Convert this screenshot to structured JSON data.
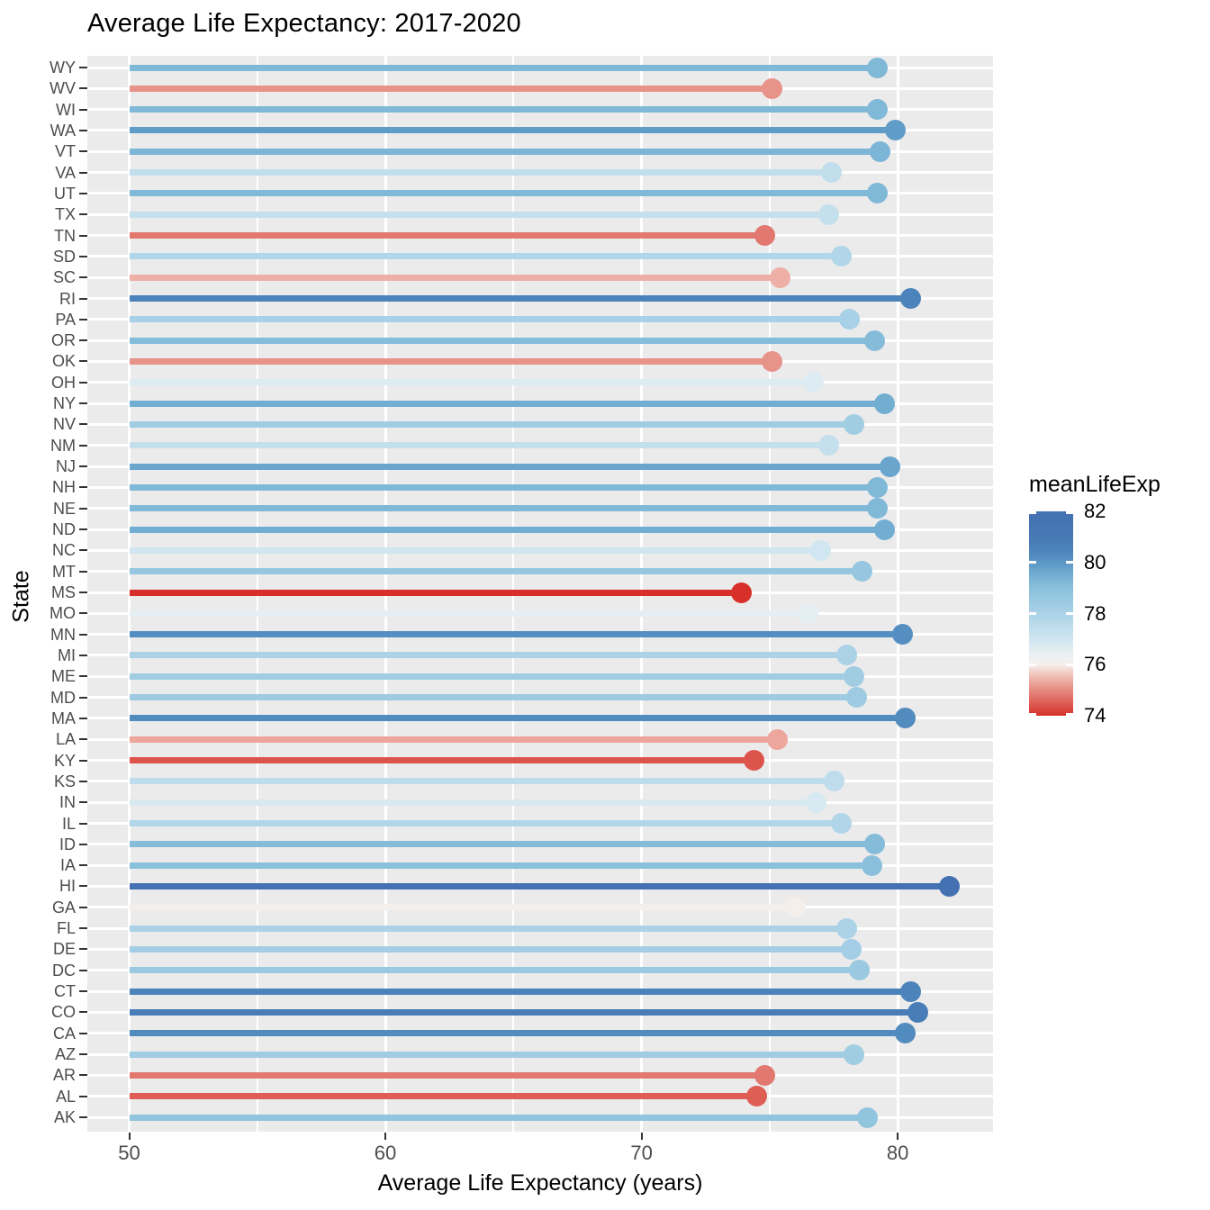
{
  "title": "Average Life Expectancy: 2017-2020",
  "x_axis": {
    "label": "Average Life Expectancy (years)",
    "ticks": [
      50,
      60,
      70,
      80
    ],
    "minor_ticks": [
      55,
      65,
      75
    ]
  },
  "y_axis": {
    "label": "State"
  },
  "legend": {
    "title": "meanLifeExp",
    "ticks": [
      82,
      80,
      78,
      76,
      74
    ],
    "min": 74,
    "max": 82,
    "position": "right"
  },
  "colors": {
    "panel_bg": "#ebebeb",
    "grid": "#ffffff",
    "axis_text": "#4d4d4d",
    "tick_mark": "#333333",
    "title_text": "#000000",
    "gradient_stops": [
      {
        "v": 74.0,
        "c": "#d7302a"
      },
      {
        "v": 74.5,
        "c": "#de5d55"
      },
      {
        "v": 75.0,
        "c": "#e58a80"
      },
      {
        "v": 75.5,
        "c": "#f0b9af"
      },
      {
        "v": 76.0,
        "c": "#f5efec"
      },
      {
        "v": 76.4,
        "c": "#e9f1f4"
      },
      {
        "v": 77.0,
        "c": "#d0e6f0"
      },
      {
        "v": 78.0,
        "c": "#abd2e7"
      },
      {
        "v": 79.0,
        "c": "#8ac0db"
      },
      {
        "v": 79.5,
        "c": "#72aed2"
      },
      {
        "v": 80.0,
        "c": "#5b97c5"
      },
      {
        "v": 80.5,
        "c": "#4c83ba"
      },
      {
        "v": 81.0,
        "c": "#4779b5"
      },
      {
        "v": 82.0,
        "c": "#4371b1"
      }
    ]
  },
  "chart_data": {
    "type": "bar",
    "subtype": "lollipop-horizontal",
    "title": "Average Life Expectancy: 2017-2020",
    "xlabel": "Average Life Expectancy (years)",
    "ylabel": "State",
    "xlim": [
      50,
      83.7
    ],
    "grid": "on",
    "legend_title": "meanLifeExp",
    "color_scale": {
      "type": "gradient",
      "domain": [
        74,
        82
      ],
      "low": "#d7302a",
      "mid": "#f5efec",
      "high": "#4371b1",
      "midpoint": 76
    },
    "categories": [
      "WY",
      "WV",
      "WI",
      "WA",
      "VT",
      "VA",
      "UT",
      "TX",
      "TN",
      "SD",
      "SC",
      "RI",
      "PA",
      "OR",
      "OK",
      "OH",
      "NY",
      "NV",
      "NM",
      "NJ",
      "NH",
      "NE",
      "ND",
      "NC",
      "MT",
      "MS",
      "MO",
      "MN",
      "MI",
      "ME",
      "MD",
      "MA",
      "LA",
      "KY",
      "KS",
      "IN",
      "IL",
      "ID",
      "IA",
      "HI",
      "GA",
      "FL",
      "DE",
      "DC",
      "CT",
      "CO",
      "CA",
      "AZ",
      "AR",
      "AL",
      "AK"
    ],
    "values": [
      79.2,
      75.1,
      79.2,
      79.9,
      79.3,
      77.4,
      79.2,
      77.3,
      74.8,
      77.8,
      75.4,
      80.5,
      78.1,
      79.1,
      75.1,
      76.7,
      79.5,
      78.3,
      77.3,
      79.7,
      79.2,
      79.2,
      79.5,
      77.0,
      78.6,
      73.9,
      76.5,
      80.2,
      78.0,
      78.3,
      78.4,
      80.3,
      75.3,
      74.4,
      77.5,
      76.8,
      77.8,
      79.1,
      79.0,
      82.0,
      76.0,
      78.0,
      78.2,
      78.5,
      80.5,
      80.8,
      80.3,
      78.3,
      74.8,
      74.5,
      78.8
    ]
  }
}
